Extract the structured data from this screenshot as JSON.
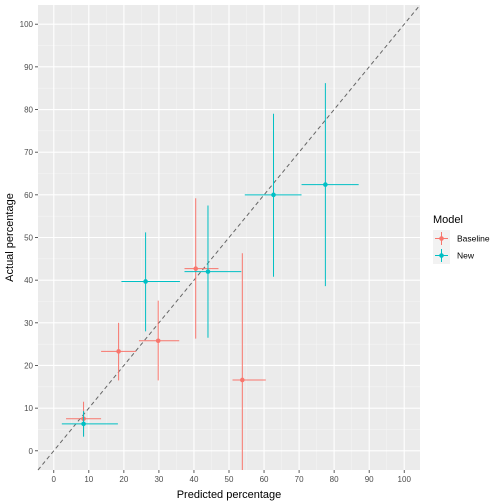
{
  "chart_data": {
    "type": "scatter",
    "xlabel": "Predicted percentage",
    "ylabel": "Actual percentage",
    "xlim": [
      -4.5,
      104.5
    ],
    "ylim": [
      -4.5,
      104.5
    ],
    "x_ticks": [
      "0",
      "10",
      "20",
      "30",
      "40",
      "50",
      "60",
      "70",
      "80",
      "90",
      "100"
    ],
    "y_ticks": [
      "0",
      "10",
      "20",
      "30",
      "40",
      "50",
      "60",
      "70",
      "80",
      "90",
      "100"
    ],
    "reference_line": "y = x (dashed)",
    "grid": true,
    "legend": {
      "title": "Model",
      "placement": "right"
    },
    "series": [
      {
        "name": "Baseline",
        "color": "#F8766D",
        "points": [
          {
            "x": 8.5,
            "y": 7.5,
            "xmin": 3.5,
            "xmax": 13.5,
            "ymin": 3.5,
            "ymax": 11.5
          },
          {
            "x": 18.5,
            "y": 23.3,
            "xmin": 13.5,
            "xmax": 23.5,
            "ymin": 16.5,
            "ymax": 30.0
          },
          {
            "x": 29.8,
            "y": 25.8,
            "xmin": 24.3,
            "xmax": 35.8,
            "ymin": 16.5,
            "ymax": 35.2
          },
          {
            "x": 40.5,
            "y": 42.7,
            "xmin": 37.3,
            "xmax": 47.0,
            "ymin": 26.3,
            "ymax": 59.2
          },
          {
            "x": 53.8,
            "y": 16.6,
            "xmin": 51.0,
            "xmax": 60.5,
            "ymin": -4.5,
            "ymax": 46.3
          }
        ]
      },
      {
        "name": "New",
        "color": "#00BFC4",
        "points": [
          {
            "x": 8.5,
            "y": 6.3,
            "xmin": 2.3,
            "xmax": 18.3,
            "ymin": 3.3,
            "ymax": 9.3
          },
          {
            "x": 26.2,
            "y": 39.7,
            "xmin": 19.3,
            "xmax": 36.0,
            "ymin": 28.0,
            "ymax": 51.2
          },
          {
            "x": 44.0,
            "y": 42.0,
            "xmin": 37.3,
            "xmax": 53.5,
            "ymin": 26.5,
            "ymax": 57.5
          },
          {
            "x": 62.7,
            "y": 60.0,
            "xmin": 54.5,
            "xmax": 70.7,
            "ymin": 40.8,
            "ymax": 79.0
          },
          {
            "x": 77.5,
            "y": 62.4,
            "xmin": 70.7,
            "xmax": 87.0,
            "ymin": 38.6,
            "ymax": 86.2
          }
        ]
      }
    ]
  }
}
